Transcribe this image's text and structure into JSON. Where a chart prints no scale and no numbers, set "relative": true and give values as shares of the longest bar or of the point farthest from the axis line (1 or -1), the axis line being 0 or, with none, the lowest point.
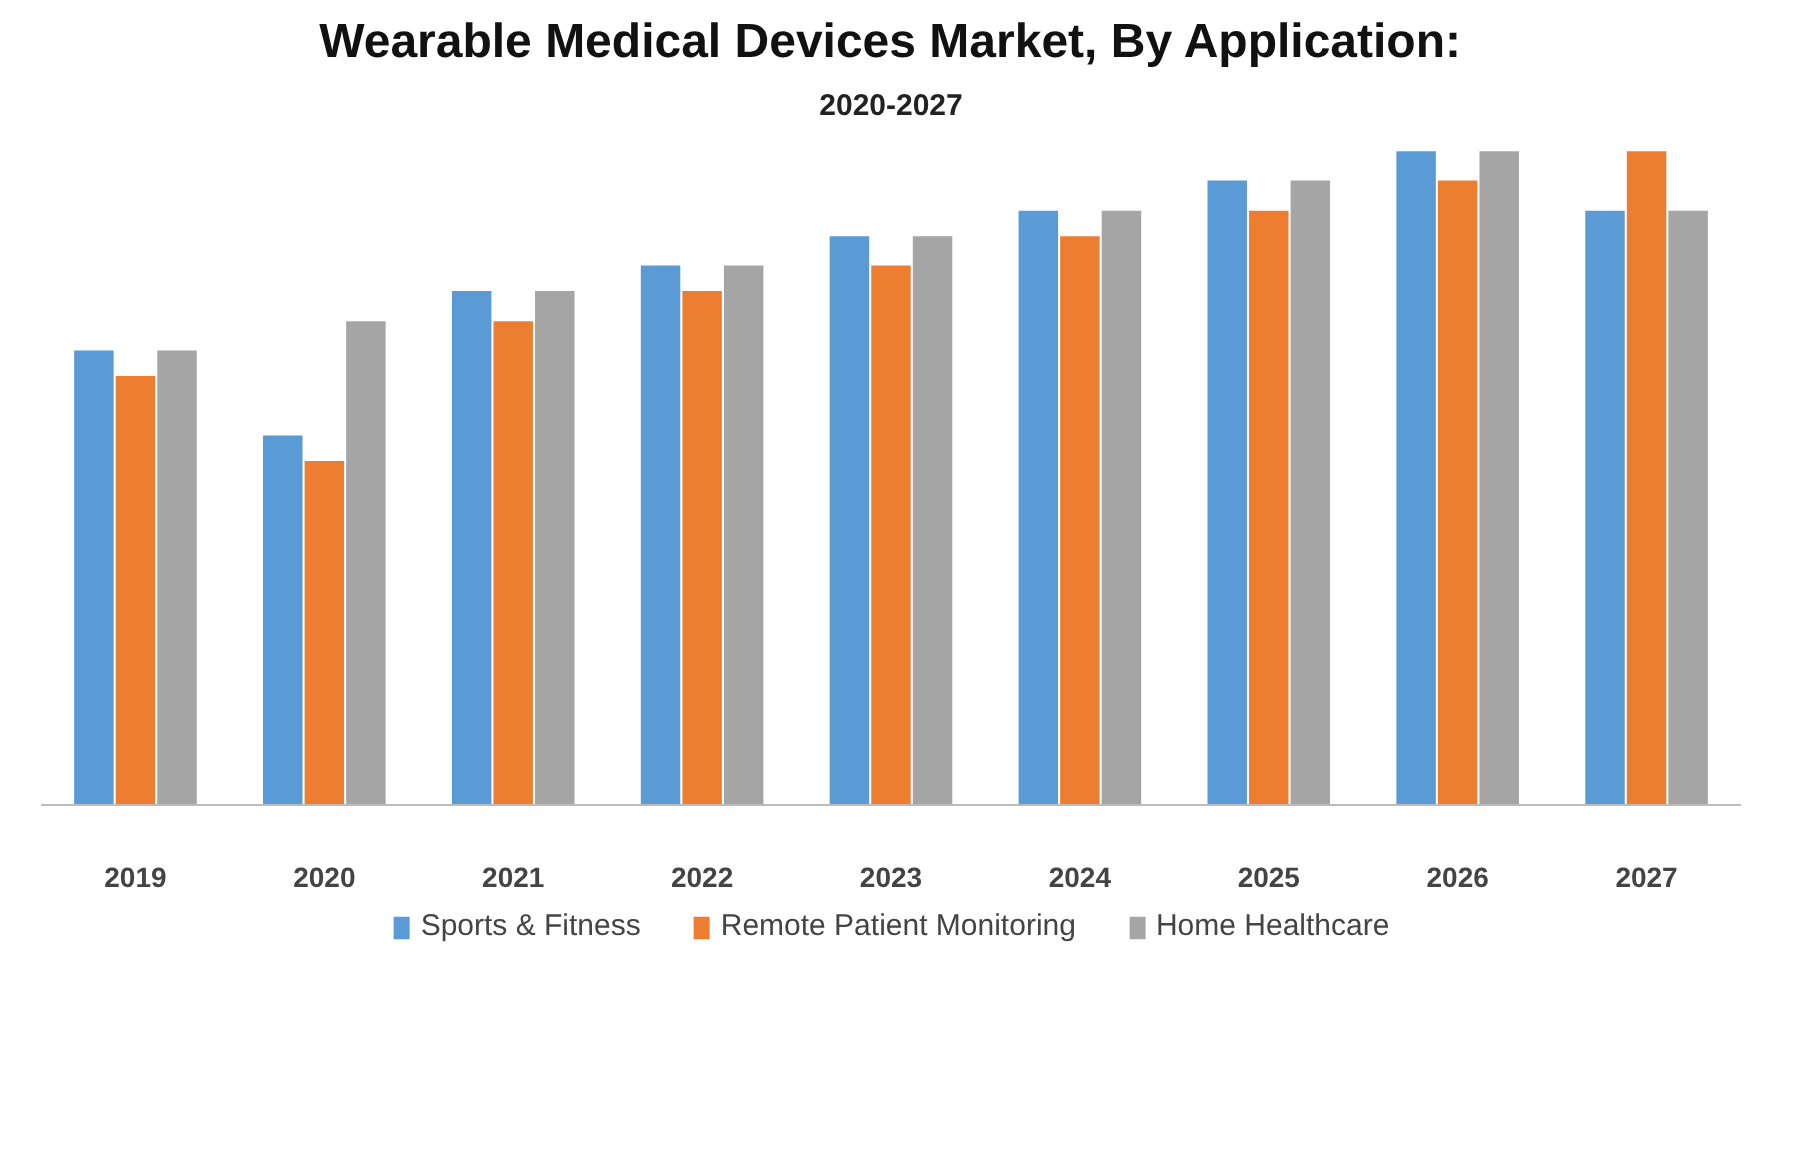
{
  "chart_data": {
    "type": "bar",
    "title": "Wearable Medical Devices Market, By Application:",
    "subtitle": "2020-2027",
    "relative": true,
    "categories": [
      "2019",
      "2020",
      "2021",
      "2022",
      "2023",
      "2024",
      "2025",
      "2026",
      "2027"
    ],
    "series": [
      {
        "name": "Sports & Fitness",
        "color": "#5b9bd5",
        "values": [
          0.695,
          0.565,
          0.786,
          0.825,
          0.87,
          0.909,
          0.955,
          1.0,
          0.909
        ]
      },
      {
        "name": "Remote Patient Monitoring",
        "color": "#ed7d31",
        "values": [
          0.656,
          0.526,
          0.74,
          0.786,
          0.825,
          0.87,
          0.909,
          0.955,
          1.0
        ]
      },
      {
        "name": "Home Healthcare",
        "color": "#a5a5a5",
        "values": [
          0.695,
          0.74,
          0.786,
          0.825,
          0.87,
          0.909,
          0.955,
          1.0,
          0.909
        ]
      }
    ],
    "legend": "bottom"
  }
}
